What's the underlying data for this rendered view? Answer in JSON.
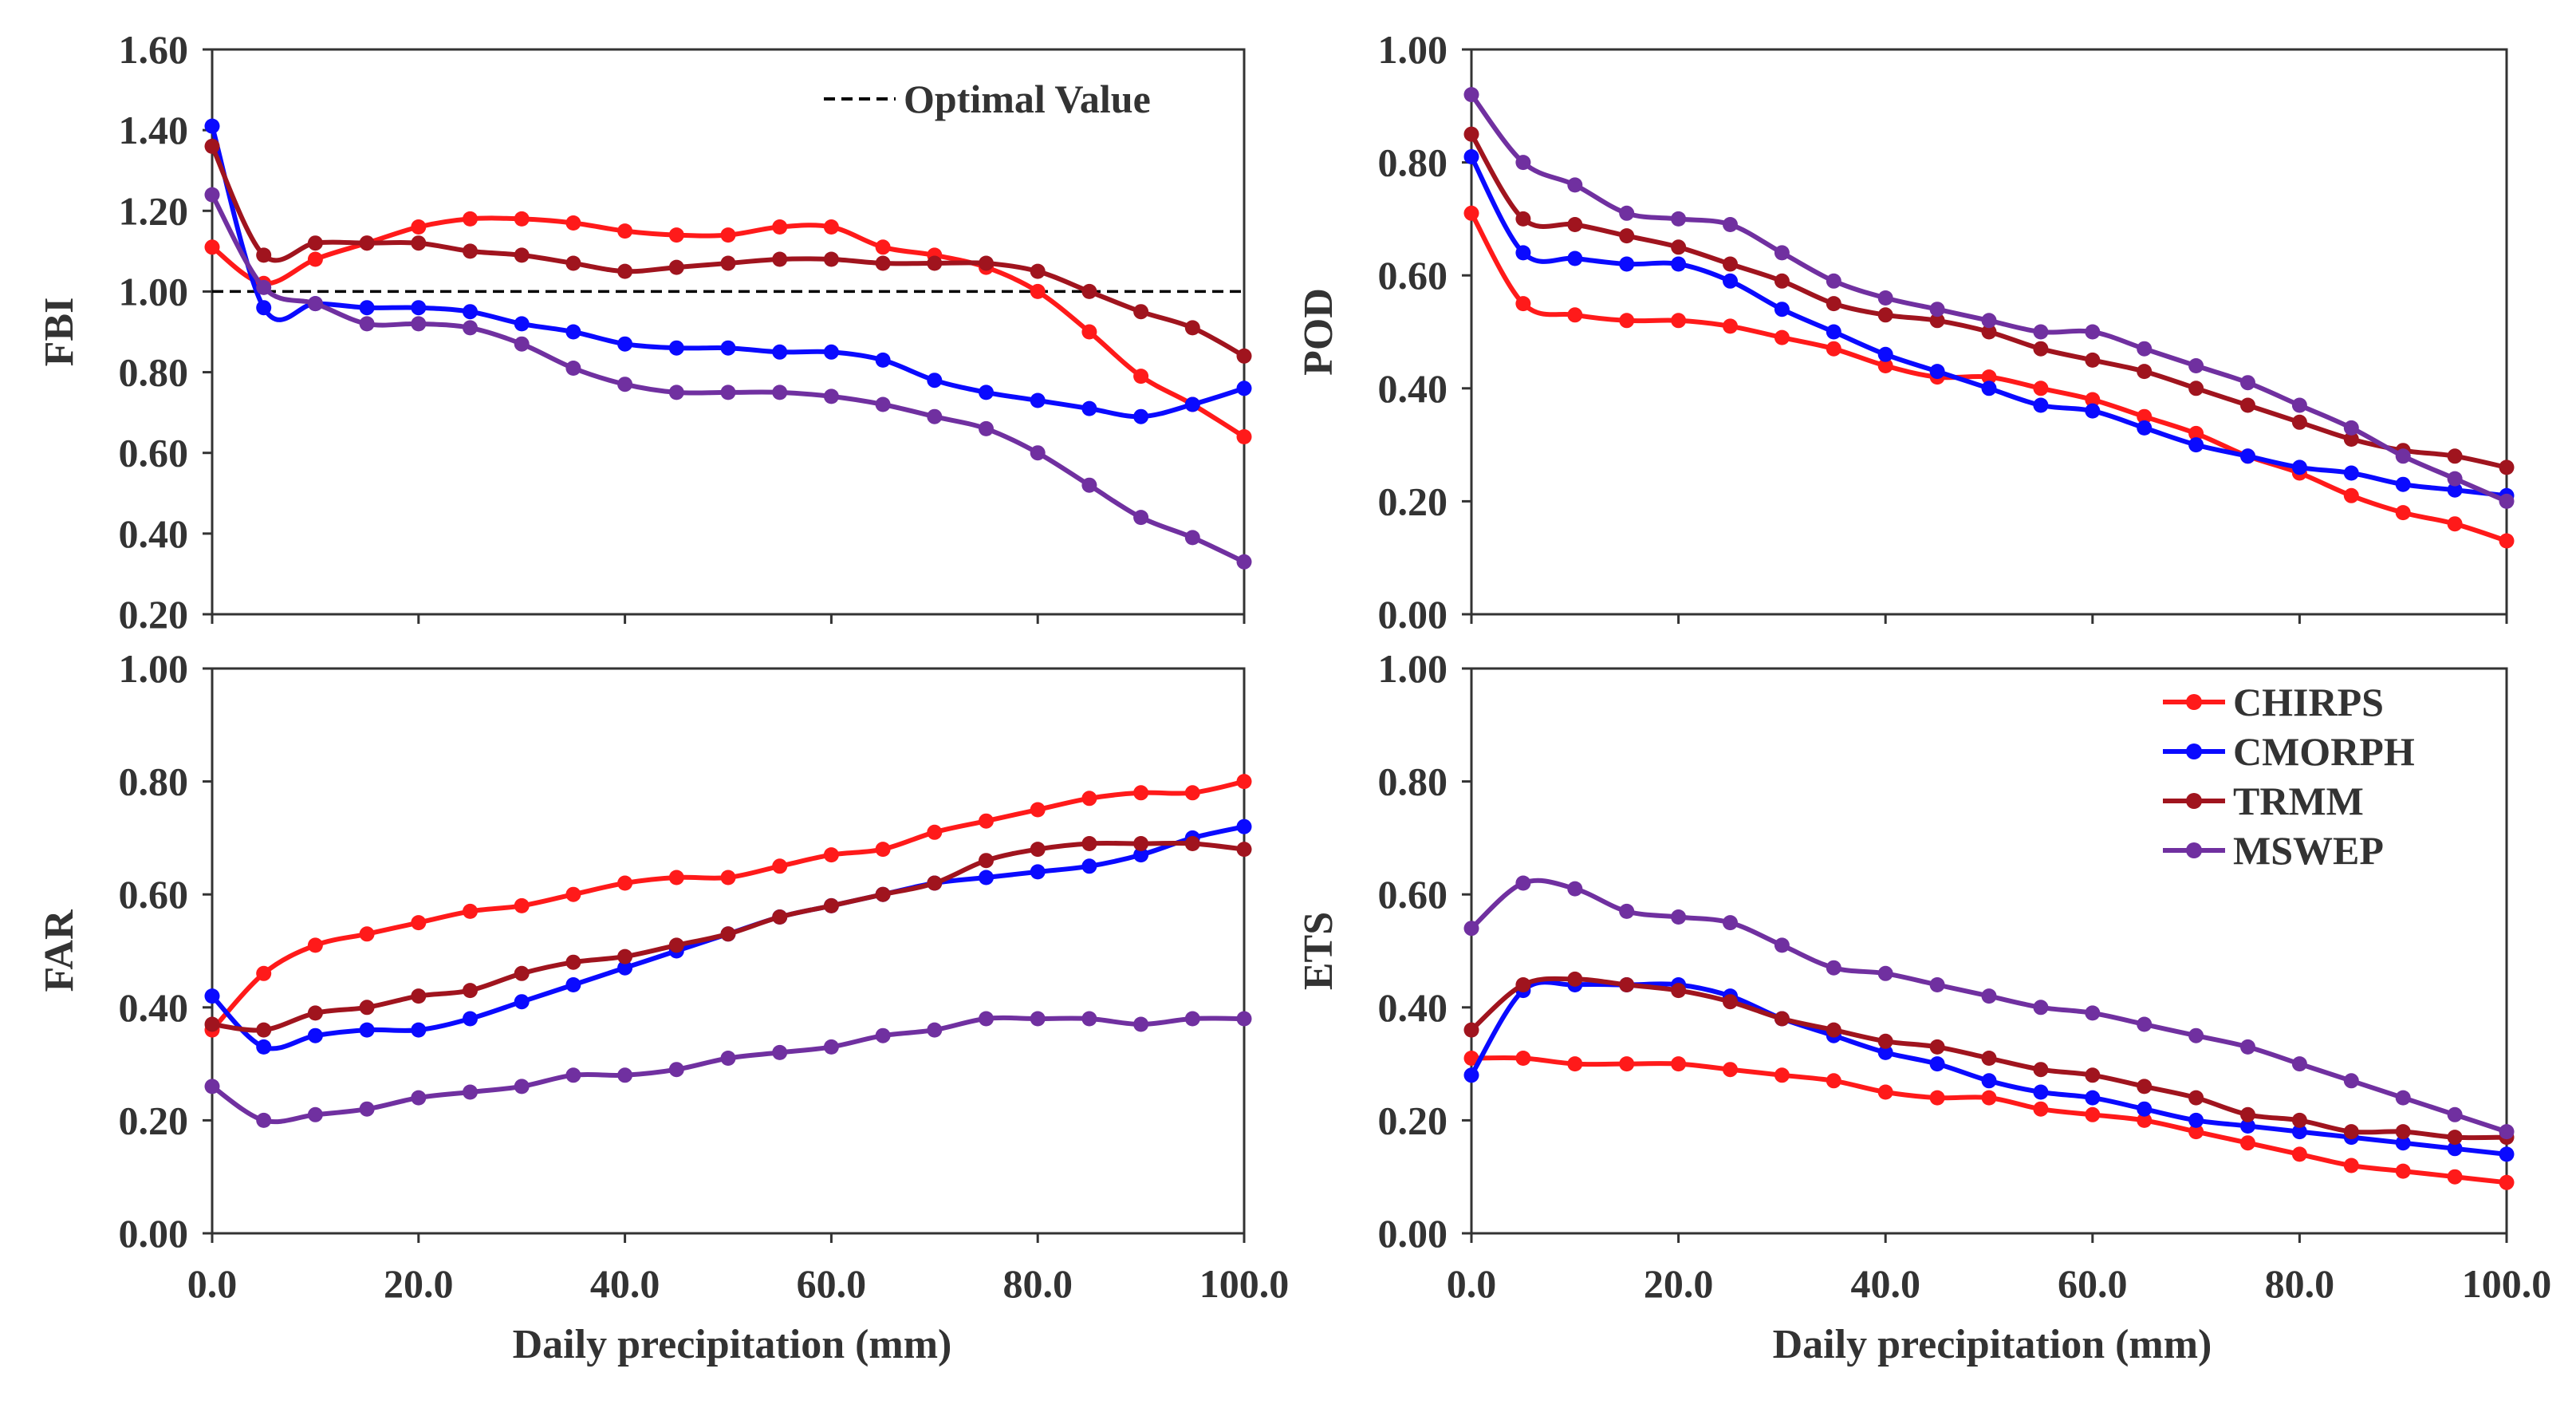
{
  "figure": {
    "shared_xlabel": "Daily precipitation (mm)",
    "optimal_label": "Optimal Value",
    "x_ticks": [
      "0.0",
      "20.0",
      "40.0",
      "60.0",
      "80.0",
      "100.0"
    ]
  },
  "colors": {
    "CHIRPS": "#ff1a1a",
    "CMORPH": "#0a0aff",
    "TRMM": "#a0141e",
    "MSWEP": "#7030a0",
    "axis": "#333333"
  },
  "legend": {
    "entries": [
      "CHIRPS",
      "CMORPH",
      "TRMM",
      "MSWEP"
    ]
  },
  "chart_data": [
    {
      "type": "line",
      "id": "fbi",
      "ylabel": "FBI",
      "xlabel": "Daily precipitation (mm)",
      "xlim": [
        0,
        100
      ],
      "ylim": [
        0.2,
        1.6
      ],
      "y_ticks": [
        "0.20",
        "0.40",
        "0.60",
        "0.80",
        "1.00",
        "1.20",
        "1.40",
        "1.60"
      ],
      "x_ticks": [
        "0.0",
        "20.0",
        "40.0",
        "60.0",
        "80.0",
        "100.0"
      ],
      "reference_line": {
        "y": 1.0,
        "label": "Optimal Value",
        "style": "dashed"
      },
      "x": [
        0,
        5,
        10,
        15,
        20,
        25,
        30,
        35,
        40,
        45,
        50,
        55,
        60,
        65,
        70,
        75,
        80,
        85,
        90,
        95,
        100
      ],
      "series": [
        {
          "name": "CHIRPS",
          "values": [
            1.11,
            1.02,
            1.08,
            1.12,
            1.16,
            1.18,
            1.18,
            1.17,
            1.15,
            1.14,
            1.14,
            1.16,
            1.16,
            1.11,
            1.09,
            1.06,
            1.0,
            0.9,
            0.79,
            0.72,
            0.64
          ]
        },
        {
          "name": "CMORPH",
          "values": [
            1.41,
            0.96,
            0.97,
            0.96,
            0.96,
            0.95,
            0.92,
            0.9,
            0.87,
            0.86,
            0.86,
            0.85,
            0.85,
            0.83,
            0.78,
            0.75,
            0.73,
            0.71,
            0.69,
            0.72,
            0.76
          ]
        },
        {
          "name": "TRMM",
          "values": [
            1.36,
            1.09,
            1.12,
            1.12,
            1.12,
            1.1,
            1.09,
            1.07,
            1.05,
            1.06,
            1.07,
            1.08,
            1.08,
            1.07,
            1.07,
            1.07,
            1.05,
            1.0,
            0.95,
            0.91,
            0.84
          ]
        },
        {
          "name": "MSWEP",
          "values": [
            1.24,
            1.01,
            0.97,
            0.92,
            0.92,
            0.91,
            0.87,
            0.81,
            0.77,
            0.75,
            0.75,
            0.75,
            0.74,
            0.72,
            0.69,
            0.66,
            0.6,
            0.52,
            0.44,
            0.39,
            0.33
          ]
        }
      ]
    },
    {
      "type": "line",
      "id": "pod",
      "ylabel": "POD",
      "xlabel": "Daily precipitation (mm)",
      "xlim": [
        0,
        100
      ],
      "ylim": [
        0,
        1
      ],
      "y_ticks": [
        "0.00",
        "0.20",
        "0.40",
        "0.60",
        "0.80",
        "1.00"
      ],
      "x_ticks": [
        "0.0",
        "20.0",
        "40.0",
        "60.0",
        "80.0",
        "100.0"
      ],
      "x": [
        0,
        5,
        10,
        15,
        20,
        25,
        30,
        35,
        40,
        45,
        50,
        55,
        60,
        65,
        70,
        75,
        80,
        85,
        90,
        95,
        100
      ],
      "series": [
        {
          "name": "CHIRPS",
          "values": [
            0.71,
            0.55,
            0.53,
            0.52,
            0.52,
            0.51,
            0.49,
            0.47,
            0.44,
            0.42,
            0.42,
            0.4,
            0.38,
            0.35,
            0.32,
            0.28,
            0.25,
            0.21,
            0.18,
            0.16,
            0.13
          ]
        },
        {
          "name": "CMORPH",
          "values": [
            0.81,
            0.64,
            0.63,
            0.62,
            0.62,
            0.59,
            0.54,
            0.5,
            0.46,
            0.43,
            0.4,
            0.37,
            0.36,
            0.33,
            0.3,
            0.28,
            0.26,
            0.25,
            0.23,
            0.22,
            0.21
          ]
        },
        {
          "name": "TRMM",
          "values": [
            0.85,
            0.7,
            0.69,
            0.67,
            0.65,
            0.62,
            0.59,
            0.55,
            0.53,
            0.52,
            0.5,
            0.47,
            0.45,
            0.43,
            0.4,
            0.37,
            0.34,
            0.31,
            0.29,
            0.28,
            0.26
          ]
        },
        {
          "name": "MSWEP",
          "values": [
            0.92,
            0.8,
            0.76,
            0.71,
            0.7,
            0.69,
            0.64,
            0.59,
            0.56,
            0.54,
            0.52,
            0.5,
            0.5,
            0.47,
            0.44,
            0.41,
            0.37,
            0.33,
            0.28,
            0.24,
            0.2
          ]
        }
      ]
    },
    {
      "type": "line",
      "id": "far",
      "ylabel": "FAR",
      "xlabel": "Daily precipitation (mm)",
      "xlim": [
        0,
        100
      ],
      "ylim": [
        0,
        1
      ],
      "y_ticks": [
        "0.00",
        "0.20",
        "0.40",
        "0.60",
        "0.80",
        "1.00"
      ],
      "x_ticks": [
        "0.0",
        "20.0",
        "40.0",
        "60.0",
        "80.0",
        "100.0"
      ],
      "x": [
        0,
        5,
        10,
        15,
        20,
        25,
        30,
        35,
        40,
        45,
        50,
        55,
        60,
        65,
        70,
        75,
        80,
        85,
        90,
        95,
        100
      ],
      "series": [
        {
          "name": "CHIRPS",
          "values": [
            0.36,
            0.46,
            0.51,
            0.53,
            0.55,
            0.57,
            0.58,
            0.6,
            0.62,
            0.63,
            0.63,
            0.65,
            0.67,
            0.68,
            0.71,
            0.73,
            0.75,
            0.77,
            0.78,
            0.78,
            0.8
          ]
        },
        {
          "name": "CMORPH",
          "values": [
            0.42,
            0.33,
            0.35,
            0.36,
            0.36,
            0.38,
            0.41,
            0.44,
            0.47,
            0.5,
            0.53,
            0.56,
            0.58,
            0.6,
            0.62,
            0.63,
            0.64,
            0.65,
            0.67,
            0.7,
            0.72
          ]
        },
        {
          "name": "TRMM",
          "values": [
            0.37,
            0.36,
            0.39,
            0.4,
            0.42,
            0.43,
            0.46,
            0.48,
            0.49,
            0.51,
            0.53,
            0.56,
            0.58,
            0.6,
            0.62,
            0.66,
            0.68,
            0.69,
            0.69,
            0.69,
            0.68
          ]
        },
        {
          "name": "MSWEP",
          "values": [
            0.26,
            0.2,
            0.21,
            0.22,
            0.24,
            0.25,
            0.26,
            0.28,
            0.28,
            0.29,
            0.31,
            0.32,
            0.33,
            0.35,
            0.36,
            0.38,
            0.38,
            0.38,
            0.37,
            0.38,
            0.38
          ]
        }
      ]
    },
    {
      "type": "line",
      "id": "ets",
      "ylabel": "ETS",
      "xlabel": "Daily precipitation (mm)",
      "xlim": [
        0,
        100
      ],
      "ylim": [
        0,
        1
      ],
      "y_ticks": [
        "0.00",
        "0.20",
        "0.40",
        "0.60",
        "0.80",
        "1.00"
      ],
      "x_ticks": [
        "0.0",
        "20.0",
        "40.0",
        "60.0",
        "80.0",
        "100.0"
      ],
      "x": [
        0,
        5,
        10,
        15,
        20,
        25,
        30,
        35,
        40,
        45,
        50,
        55,
        60,
        65,
        70,
        75,
        80,
        85,
        90,
        95,
        100
      ],
      "legend": [
        "CHIRPS",
        "CMORPH",
        "TRMM",
        "MSWEP"
      ],
      "legend_position": "top-right",
      "series": [
        {
          "name": "CHIRPS",
          "values": [
            0.31,
            0.31,
            0.3,
            0.3,
            0.3,
            0.29,
            0.28,
            0.27,
            0.25,
            0.24,
            0.24,
            0.22,
            0.21,
            0.2,
            0.18,
            0.16,
            0.14,
            0.12,
            0.11,
            0.1,
            0.09
          ]
        },
        {
          "name": "CMORPH",
          "values": [
            0.28,
            0.43,
            0.44,
            0.44,
            0.44,
            0.42,
            0.38,
            0.35,
            0.32,
            0.3,
            0.27,
            0.25,
            0.24,
            0.22,
            0.2,
            0.19,
            0.18,
            0.17,
            0.16,
            0.15,
            0.14
          ]
        },
        {
          "name": "TRMM",
          "values": [
            0.36,
            0.44,
            0.45,
            0.44,
            0.43,
            0.41,
            0.38,
            0.36,
            0.34,
            0.33,
            0.31,
            0.29,
            0.28,
            0.26,
            0.24,
            0.21,
            0.2,
            0.18,
            0.18,
            0.17,
            0.17
          ]
        },
        {
          "name": "MSWEP",
          "values": [
            0.54,
            0.62,
            0.61,
            0.57,
            0.56,
            0.55,
            0.51,
            0.47,
            0.46,
            0.44,
            0.42,
            0.4,
            0.39,
            0.37,
            0.35,
            0.33,
            0.3,
            0.27,
            0.24,
            0.21,
            0.18
          ]
        }
      ]
    }
  ]
}
